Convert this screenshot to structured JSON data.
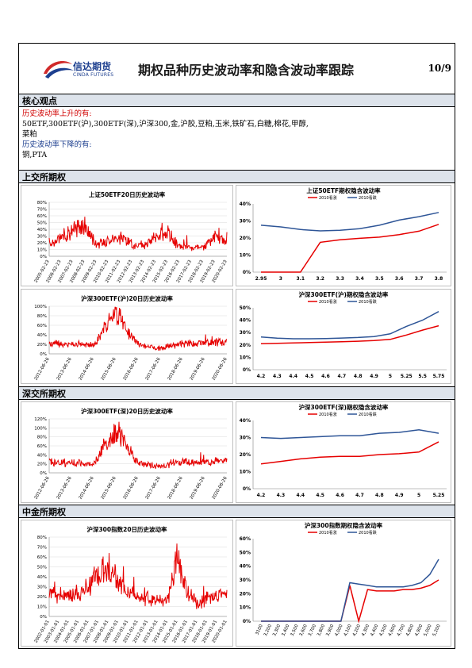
{
  "header": {
    "logo_cn": "信达期货",
    "logo_en": "CINDA FUTURES",
    "title": "期权品种历史波动率和隐含波动率跟踪",
    "date": "10/9"
  },
  "core_view": {
    "heading": "核心观点",
    "up_label": "历史波动率上升的有:",
    "up_items_line1": "50ETF,300ETF(沪),300ETF(深),沪深300,金,沪胶,豆粕,玉米,铁矿石,白糖,棉花,甲醇,",
    "up_items_line2": "菜粕",
    "down_label": "历史波动率下降的有:",
    "down_items": "铜,PTA"
  },
  "sections": {
    "sse": "上交所期权",
    "szse": "深交所期权",
    "cffex": "中金所期权"
  },
  "colors": {
    "red": "#e60000",
    "blue": "#2e5597",
    "section_bg": "#dde3eb"
  },
  "chart_data": [
    {
      "id": "hv-50etf",
      "type": "line",
      "title": "上证50ETF20日历史波动率",
      "y_ticks": [
        "80%",
        "70%",
        "60%",
        "50%",
        "40%",
        "30%",
        "20%",
        "10%",
        "0%"
      ],
      "ylim": [
        0,
        80
      ],
      "x": [
        "2005-02-23",
        "2006-02-23",
        "2007-02-23",
        "2008-02-23",
        "2009-02-23",
        "2010-02-23",
        "2011-02-23",
        "2012-02-23",
        "2013-02-23",
        "2014-02-23",
        "2015-02-23",
        "2016-02-23",
        "2017-02-23",
        "2018-02-23",
        "2019-02-23",
        "2020-02-23"
      ],
      "series": [
        {
          "values": [
            20,
            25,
            40,
            45,
            18,
            24,
            27,
            18,
            16,
            30,
            35,
            14,
            12,
            14,
            30,
            24
          ],
          "color": "#e60000"
        }
      ],
      "grid": true
    },
    {
      "id": "iv-50etf",
      "type": "line",
      "title": "上证50ETF期权隐含波动率",
      "y_ticks": [
        "40%",
        "30%",
        "20%",
        "10%",
        "0%"
      ],
      "ylim": [
        0,
        40
      ],
      "categories": [
        "2.95",
        "3",
        "3.1",
        "3.2",
        "3.3",
        "3.4",
        "3.5",
        "3.6",
        "3.7",
        "3.8"
      ],
      "series": [
        {
          "name": "2010看涨",
          "color": "#e60000",
          "values": [
            0,
            0,
            0,
            17.5,
            19,
            19.8,
            20.5,
            22,
            24,
            28
          ]
        },
        {
          "name": "2010看跌",
          "color": "#2e5597",
          "values": [
            27.5,
            26.5,
            25,
            24.2,
            24.5,
            25.5,
            27.5,
            30.5,
            32.5,
            35
          ]
        }
      ],
      "legend": "top"
    },
    {
      "id": "hv-300etf-sh",
      "type": "line",
      "title": "沪深300ETF(沪)20日历史波动率",
      "y_ticks": [
        "100%",
        "80%",
        "60%",
        "40%",
        "20%",
        "0%"
      ],
      "ylim": [
        0,
        100
      ],
      "x": [
        "2012-06-26",
        "2013-06-26",
        "2014-06-26",
        "2015-06-26",
        "2016-06-26",
        "2017-06-26",
        "2018-06-26",
        "2019-06-26",
        "2020-06-26"
      ],
      "series": [
        {
          "values": [
            22,
            20,
            18,
            85,
            20,
            12,
            22,
            22,
            25
          ],
          "color": "#e60000"
        }
      ],
      "grid": true
    },
    {
      "id": "iv-300etf-sh",
      "type": "line",
      "title": "沪深300ETF(沪)期权隐含波动率",
      "y_ticks": [
        "50%",
        "40%",
        "30%",
        "20%",
        "10%",
        "0%"
      ],
      "ylim": [
        0,
        50
      ],
      "categories": [
        "4.2",
        "4.3",
        "4.4",
        "4.5",
        "4.6",
        "4.7",
        "4.8",
        "4.9",
        "5",
        "5.25",
        "5.5",
        "5.75"
      ],
      "series": [
        {
          "name": "2010看涨",
          "color": "#e60000",
          "values": [
            21,
            21.3,
            21.6,
            22,
            22.3,
            22.6,
            23,
            23.5,
            24.5,
            28,
            32,
            35.5
          ]
        },
        {
          "name": "2010看跌",
          "color": "#2e5597",
          "values": [
            26.5,
            25.5,
            25,
            25,
            25.2,
            25.6,
            26,
            26.8,
            29,
            35,
            40,
            47
          ]
        }
      ],
      "legend": "top"
    },
    {
      "id": "hv-300etf-sz",
      "type": "line",
      "title": "沪深300ETF(深)20日历史波动率",
      "y_ticks": [
        "120%",
        "100%",
        "80%",
        "60%",
        "40%",
        "20%",
        "0%"
      ],
      "ylim": [
        0,
        120
      ],
      "x": [
        "2012-06-26",
        "2013-06-26",
        "2014-06-26",
        "2015-06-26",
        "2016-06-26",
        "2017-06-26",
        "2018-06-26",
        "2019-06-26",
        "2020-06-26"
      ],
      "series": [
        {
          "values": [
            24,
            22,
            20,
            95,
            22,
            14,
            24,
            24,
            26
          ],
          "color": "#e60000"
        }
      ],
      "grid": true
    },
    {
      "id": "iv-300etf-sz",
      "type": "line",
      "title": "沪深300ETF(深)期权隐含波动率",
      "y_ticks": [
        "40%",
        "30%",
        "20%",
        "10%",
        "0%"
      ],
      "ylim": [
        0,
        40
      ],
      "categories": [
        "4.2",
        "4.3",
        "4.4",
        "4.5",
        "4.6",
        "4.7",
        "4.8",
        "4.9",
        "5",
        "5.25"
      ],
      "series": [
        {
          "name": "2010看涨",
          "color": "#e60000",
          "values": [
            14.5,
            16,
            17.5,
            18.5,
            19,
            19,
            20,
            20.5,
            21.5,
            27.5
          ]
        },
        {
          "name": "2010看跌",
          "color": "#2e5597",
          "values": [
            30,
            29.5,
            30,
            30.5,
            31,
            31,
            32.5,
            33,
            34.5,
            32.5
          ]
        }
      ],
      "legend": "top"
    },
    {
      "id": "hv-csi300",
      "type": "line",
      "title": "沪深300指数20日历史波动率",
      "y_ticks": [
        "80%",
        "70%",
        "60%",
        "50%",
        "40%",
        "30%",
        "20%",
        "10%",
        "0%"
      ],
      "ylim": [
        0,
        80
      ],
      "x": [
        "2002-01-01",
        "2003-01-01",
        "2004-01-01",
        "2005-01-01",
        "2006-01-01",
        "2007-01-01",
        "2008-01-01",
        "2009-01-01",
        "2010-01-01",
        "2011-01-01",
        "2012-01-01",
        "2013-01-01",
        "2014-01-01",
        "2015-01-01",
        "2016-01-01",
        "2017-01-01",
        "2018-01-01",
        "2019-01-01",
        "2020-01-01"
      ],
      "series": [
        {
          "values": [
            22,
            20,
            22,
            24,
            28,
            45,
            50,
            35,
            25,
            20,
            18,
            18,
            16,
            60,
            25,
            12,
            18,
            20,
            22
          ],
          "color": "#e60000"
        }
      ],
      "grid": true
    },
    {
      "id": "iv-csi300",
      "type": "line",
      "title": "沪深300指数期权隐含波动率",
      "y_ticks": [
        "60%",
        "50%",
        "40%",
        "30%",
        "20%",
        "10%",
        "0%"
      ],
      "ylim": [
        0,
        60
      ],
      "categories": [
        "3100",
        "3,200",
        "3,300",
        "3,400",
        "3,500",
        "3,600",
        "3,700",
        "3,800",
        "3,900",
        "4,000",
        "4,100",
        "4,200",
        "4,300",
        "4,400",
        "4,500",
        "4,600",
        "4,700",
        "4,800",
        "4,900",
        "5,000",
        "5,200"
      ],
      "series": [
        {
          "name": "2010看涨",
          "color": "#e60000",
          "values": [
            0,
            0,
            0,
            0,
            0,
            0,
            0,
            0,
            0,
            0,
            26,
            0,
            23,
            22,
            22,
            22,
            23,
            23,
            24,
            26,
            30
          ]
        },
        {
          "name": "2010看跌",
          "color": "#2e5597",
          "values": [
            0,
            0,
            0,
            0,
            0,
            0,
            0,
            0,
            0,
            0,
            28,
            27,
            26,
            25,
            25,
            25,
            25,
            26,
            28,
            34,
            45
          ]
        }
      ],
      "legend": "top"
    }
  ]
}
